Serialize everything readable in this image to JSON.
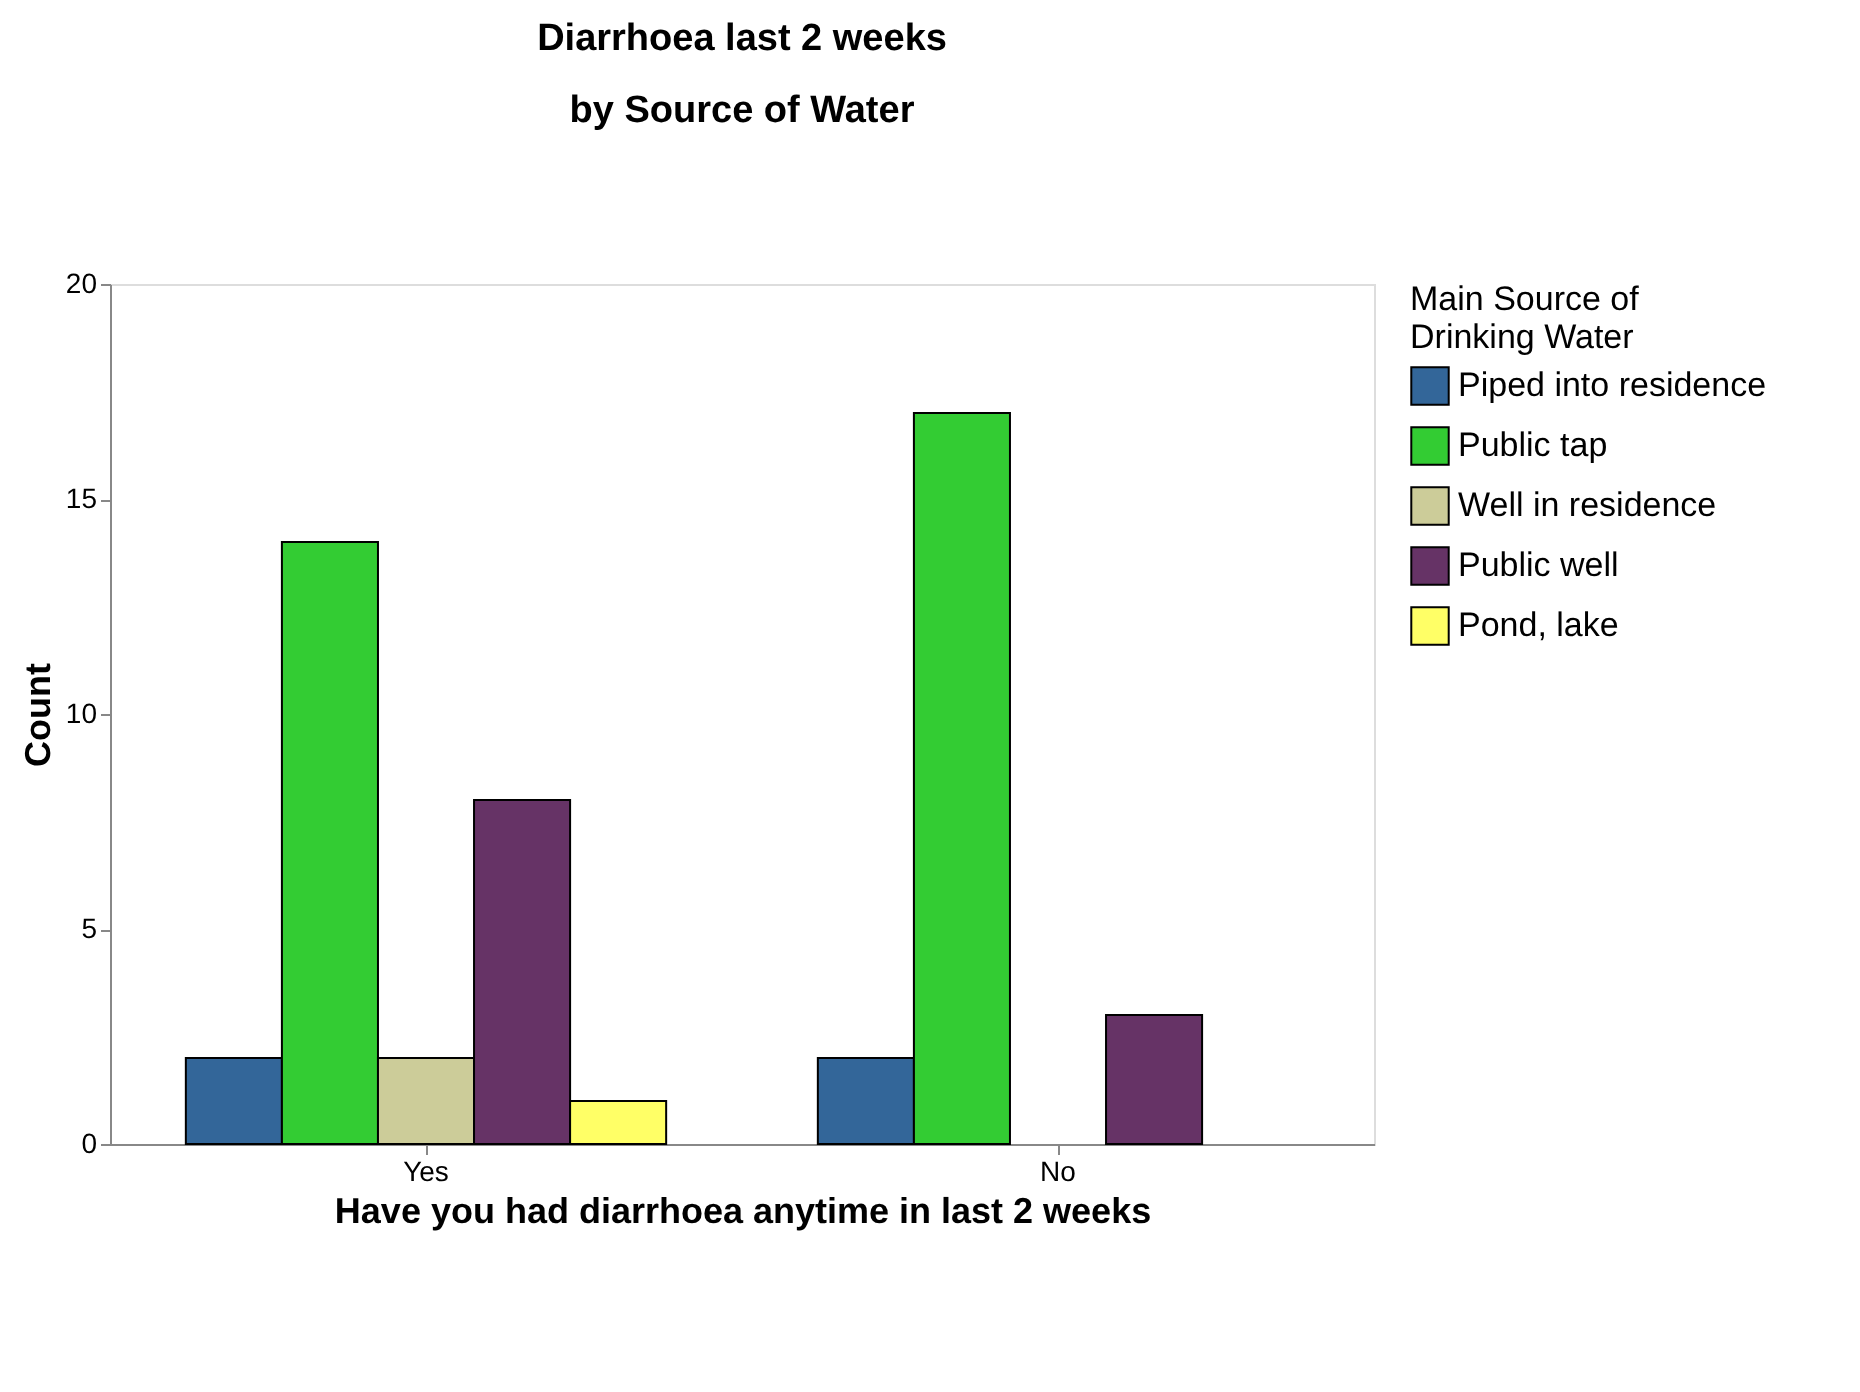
{
  "chart_data": {
    "type": "bar",
    "title": [
      "Diarrhoea last 2 weeks",
      "by Source of Water"
    ],
    "xlabel": "Have you had diarrhoea anytime in last 2 weeks",
    "ylabel": "Count",
    "legend_title": "Main Source of Drinking Water",
    "categories": [
      "Yes",
      "No"
    ],
    "series": [
      {
        "name": "Piped into residence",
        "color": "#336699",
        "values": [
          2,
          2
        ]
      },
      {
        "name": "Public tap",
        "color": "#33cc33",
        "values": [
          14,
          17
        ]
      },
      {
        "name": "Well in residence",
        "color": "#cccc99",
        "values": [
          2,
          null
        ]
      },
      {
        "name": "Public well",
        "color": "#663366",
        "values": [
          8,
          3
        ]
      },
      {
        "name": "Pond, lake",
        "color": "#ffff66",
        "values": [
          1,
          null
        ]
      }
    ],
    "ylim": [
      0,
      20
    ],
    "yticks": [
      0,
      5,
      10,
      15,
      20
    ],
    "grid": false,
    "legend": "top right"
  }
}
